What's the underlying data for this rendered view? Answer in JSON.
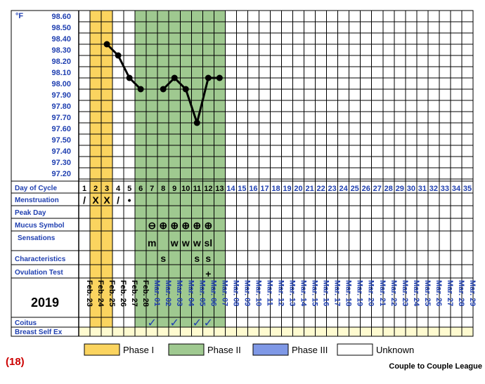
{
  "chart_data": {
    "type": "line",
    "unit_label": "°F",
    "temp_ticks": [
      "98.60",
      "98.50",
      "98.40",
      "98.30",
      "98.20",
      "98.10",
      "98.00",
      "97.90",
      "97.80",
      "97.70",
      "97.60",
      "97.50",
      "97.40",
      "97.30",
      "97.20"
    ],
    "ylim": [
      97.1,
      98.6
    ],
    "series": [
      {
        "cycle_days": [
          3,
          4,
          5,
          6
        ],
        "temps": [
          98.3,
          98.2,
          98.0,
          97.9
        ]
      },
      {
        "cycle_days": [
          8,
          9,
          10,
          11,
          12,
          13
        ],
        "temps": [
          97.9,
          98.0,
          97.9,
          97.6,
          98.0,
          98.0
        ]
      }
    ],
    "dates": [
      "Feb. 23",
      "Feb. 24",
      "Feb. 25",
      "Feb. 26",
      "Feb. 27",
      "Feb. 28",
      "Mar. 01",
      "Mar. 02",
      "Mar. 03",
      "Mar. 04",
      "Mar. 05",
      "Mar. 06",
      "Mar. 07",
      "Mar. 08",
      "Mar. 09",
      "Mar. 10",
      "Mar. 11",
      "Mar. 12",
      "Mar. 13",
      "Mar. 14",
      "Mar. 15",
      "Mar. 16",
      "Mar. 17",
      "Mar. 18",
      "Mar. 19",
      "Mar. 20",
      "Mar. 21",
      "Mar. 22",
      "Mar. 23",
      "Mar. 24",
      "Mar. 25",
      "Mar. 26",
      "Mar. 27",
      "Mar. 28",
      "Mar. 29"
    ],
    "phase1_days": [
      2,
      3
    ],
    "phase2_days": [
      6,
      7,
      8,
      9,
      10,
      11,
      12,
      13
    ],
    "row_labels": {
      "day_of_cycle": "Day of Cycle",
      "menstruation": "Menstruation",
      "peak_day": "Peak Day",
      "mucus_symbol": "Mucus Symbol",
      "sensations": "Sensations",
      "characteristics": "Characteristics",
      "ovulation_test": "Ovulation Test",
      "coitus": "Coitus",
      "breast_self_ex": "Breast Self Ex"
    },
    "menstruation": [
      {
        "day": 1,
        "mark": "/"
      },
      {
        "day": 2,
        "mark": "X"
      },
      {
        "day": 3,
        "mark": "X"
      },
      {
        "day": 4,
        "mark": "/"
      },
      {
        "day": 5,
        "mark": "•"
      }
    ],
    "mucus_symbols": [
      {
        "day": 7,
        "mark": "⊖"
      },
      {
        "day": 8,
        "mark": "⊕"
      },
      {
        "day": 9,
        "mark": "⊕"
      },
      {
        "day": 10,
        "mark": "⊕"
      },
      {
        "day": 11,
        "mark": "⊕"
      },
      {
        "day": 12,
        "mark": "⊕"
      }
    ],
    "sensations": [
      {
        "day": 7,
        "mark": "m"
      },
      {
        "day": 9,
        "mark": "w"
      },
      {
        "day": 10,
        "mark": "w"
      },
      {
        "day": 11,
        "mark": "w"
      },
      {
        "day": 12,
        "mark": "sl"
      }
    ],
    "characteristics": [
      {
        "day": 8,
        "mark": "s"
      },
      {
        "day": 11,
        "mark": "s"
      },
      {
        "day": 12,
        "mark": "s"
      }
    ],
    "ovulation_test": [
      {
        "day": 12,
        "mark": "+"
      }
    ],
    "coitus_days": [
      7,
      9,
      11,
      12
    ],
    "checkmark": "✓",
    "year": "2019",
    "legend": [
      {
        "label": "Phase I",
        "color": "#fbd45f"
      },
      {
        "label": "Phase II",
        "color": "#9fc990"
      },
      {
        "label": "Phase III",
        "color": "#7f98e6"
      },
      {
        "label": "Unknown",
        "color": "#ffffff"
      }
    ],
    "chart_number": "(18)",
    "footer": "Couple to Couple League",
    "colors": {
      "phase1": "#fbd45f",
      "phase2": "#9fc990",
      "grid": "#000000",
      "label": "#1f3fb0",
      "future_date": "#1f3fb0",
      "highlight": "#fffbd0",
      "red": "#cc0000"
    }
  }
}
